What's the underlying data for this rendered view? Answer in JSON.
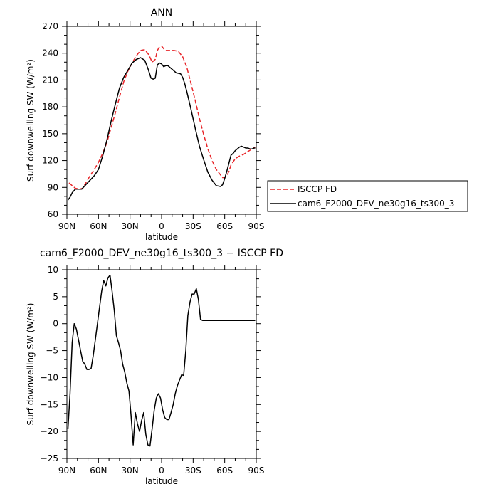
{
  "chart_data": [
    {
      "type": "line",
      "title": "ANN",
      "xlabel": "latitude",
      "ylabel": "Surf downwelling SW (W/m²)",
      "xlim": [
        90,
        -90
      ],
      "ylim": [
        60,
        270
      ],
      "xticks": [
        90,
        60,
        30,
        0,
        -30,
        -60,
        -90
      ],
      "xtick_labels": [
        "90N",
        "60N",
        "30N",
        "0",
        "30S",
        "60S",
        "90S"
      ],
      "yticks": [
        60,
        90,
        120,
        150,
        180,
        210,
        240,
        270
      ],
      "ytick_labels": [
        "60",
        "90",
        "120",
        "150",
        "180",
        "210",
        "240",
        "270"
      ],
      "grid": false,
      "legend": "right-bottom",
      "series": [
        {
          "name": "ISCCP FD",
          "color": "#e8262a",
          "dash": "dashed",
          "x": [
            88,
            85,
            82,
            78,
            75,
            72,
            68,
            64,
            60,
            56,
            52,
            48,
            44,
            40,
            36,
            32,
            28,
            24,
            20,
            16,
            12,
            9,
            6,
            4,
            2,
            0,
            -2,
            -4,
            -8,
            -12,
            -16,
            -20,
            -24,
            -28,
            -32,
            -36,
            -40,
            -44,
            -48,
            -52,
            -56,
            -58,
            -60,
            -62,
            -64,
            -66,
            -70,
            -74,
            -78,
            -82,
            -86,
            -89
          ],
          "values": [
            95,
            92,
            89,
            88,
            89,
            95,
            103,
            110,
            118,
            128,
            140,
            157,
            173,
            191,
            208,
            220,
            229,
            237,
            243,
            244,
            238,
            230,
            233,
            243,
            247,
            248,
            245,
            243,
            243,
            243,
            242,
            236,
            224,
            206,
            187,
            167,
            149,
            133,
            120,
            110,
            104,
            101,
            101,
            103,
            108,
            115,
            122,
            125,
            127,
            130,
            133,
            135
          ]
        },
        {
          "name": "cam6_F2000_DEV_ne30g16_ts300_3",
          "color": "#000000",
          "dash": "solid",
          "x": [
            89,
            87,
            85,
            82,
            79,
            76,
            72,
            68,
            64,
            60,
            56,
            52,
            48,
            44,
            40,
            36,
            32,
            28,
            24,
            20,
            16,
            13,
            10,
            8,
            6,
            4,
            2,
            0,
            -2,
            -4,
            -6,
            -10,
            -14,
            -18,
            -20,
            -22,
            -24,
            -28,
            -32,
            -36,
            -40,
            -44,
            -48,
            -52,
            -56,
            -58,
            -60,
            -62,
            -64,
            -66,
            -68,
            -70,
            -72,
            -74,
            -76,
            -78,
            -80,
            -82,
            -84,
            -86,
            -88,
            -89
          ],
          "values": [
            76,
            79,
            84,
            88,
            88,
            88,
            93,
            98,
            103,
            110,
            125,
            143,
            164,
            183,
            201,
            213,
            221,
            229,
            233,
            235,
            232,
            223,
            212,
            211,
            212,
            227,
            229,
            228,
            225,
            226,
            226,
            222,
            218,
            217,
            213,
            206,
            197,
            177,
            156,
            136,
            121,
            107,
            98,
            92,
            91,
            93,
            100,
            108,
            117,
            126,
            128,
            131,
            133,
            135,
            136,
            135,
            134,
            134,
            133,
            133,
            134,
            134
          ]
        }
      ]
    },
    {
      "type": "line",
      "title": "cam6_F2000_DEV_ne30g16_ts300_3 − ISCCP FD",
      "xlabel": "latitude",
      "ylabel": "Surf downwelling SW (W/m²)",
      "xlim": [
        90,
        -90
      ],
      "ylim": [
        -25,
        10
      ],
      "xticks": [
        90,
        60,
        30,
        0,
        -30,
        -60,
        -90
      ],
      "xtick_labels": [
        "90N",
        "60N",
        "30N",
        "0",
        "30S",
        "60S",
        "90S"
      ],
      "yticks": [
        -25,
        -20,
        -15,
        -10,
        -5,
        0,
        5,
        10
      ],
      "ytick_labels": [
        "−25",
        "−20",
        "−15",
        "−10",
        "−5",
        "0",
        "5",
        "10"
      ],
      "grid": false,
      "series": [
        {
          "name": "",
          "color": "#000000",
          "dash": "solid",
          "x": [
            89,
            87,
            85,
            83,
            81,
            79,
            77,
            75,
            73,
            71,
            69,
            67,
            65,
            63,
            61,
            59,
            57,
            55,
            53,
            51,
            49,
            47,
            45,
            43,
            41,
            39,
            37,
            35,
            33,
            31,
            29,
            27,
            25,
            23,
            21,
            19,
            17,
            15,
            13,
            11,
            9,
            7,
            5,
            3,
            1,
            -1,
            -3,
            -5,
            -7,
            -9,
            -11,
            -13,
            -15,
            -17,
            -19,
            -21,
            -23,
            -25,
            -27,
            -29,
            -31,
            -33,
            -35,
            -37,
            -39,
            -41,
            -43,
            -45,
            -47,
            -49,
            -51,
            -53,
            -55,
            -57,
            -59,
            -61,
            -63,
            -65,
            -67,
            -69,
            -71,
            -73,
            -75,
            -77,
            -79,
            -81,
            -83,
            -85,
            -87,
            -89
          ],
          "values": [
            -19.5,
            -13,
            -3.5,
            0,
            -1,
            -3,
            -5,
            -7,
            -7.5,
            -8.5,
            -8.5,
            -8.3,
            -6,
            -3,
            0,
            3,
            6,
            8,
            7,
            8.5,
            9,
            6,
            2.5,
            -2.2,
            -3.5,
            -5,
            -7.5,
            -9,
            -11,
            -12.5,
            -17,
            -22.5,
            -16.5,
            -18.5,
            -20,
            -18,
            -16.5,
            -20.5,
            -22.5,
            -22.7,
            -19.5,
            -16,
            -13.8,
            -13,
            -13.8,
            -16,
            -17.4,
            -17.8,
            -17.8,
            -16.5,
            -15,
            -13,
            -11.5,
            -10.5,
            -9.5,
            -9.6,
            -5,
            1.5,
            4,
            5.5,
            5.5,
            6.5,
            4.5,
            0.8,
            0.6,
            0.6,
            0.6,
            0.6,
            0.6,
            0.6,
            0.6,
            0.6,
            0.6,
            0.6,
            0.6,
            0.6,
            0.6,
            0.6,
            0.6,
            0.6,
            0.6,
            0.6,
            0.6,
            0.6,
            0.6,
            0.6,
            0.6,
            0.6,
            0.6,
            0.6
          ]
        }
      ]
    }
  ]
}
